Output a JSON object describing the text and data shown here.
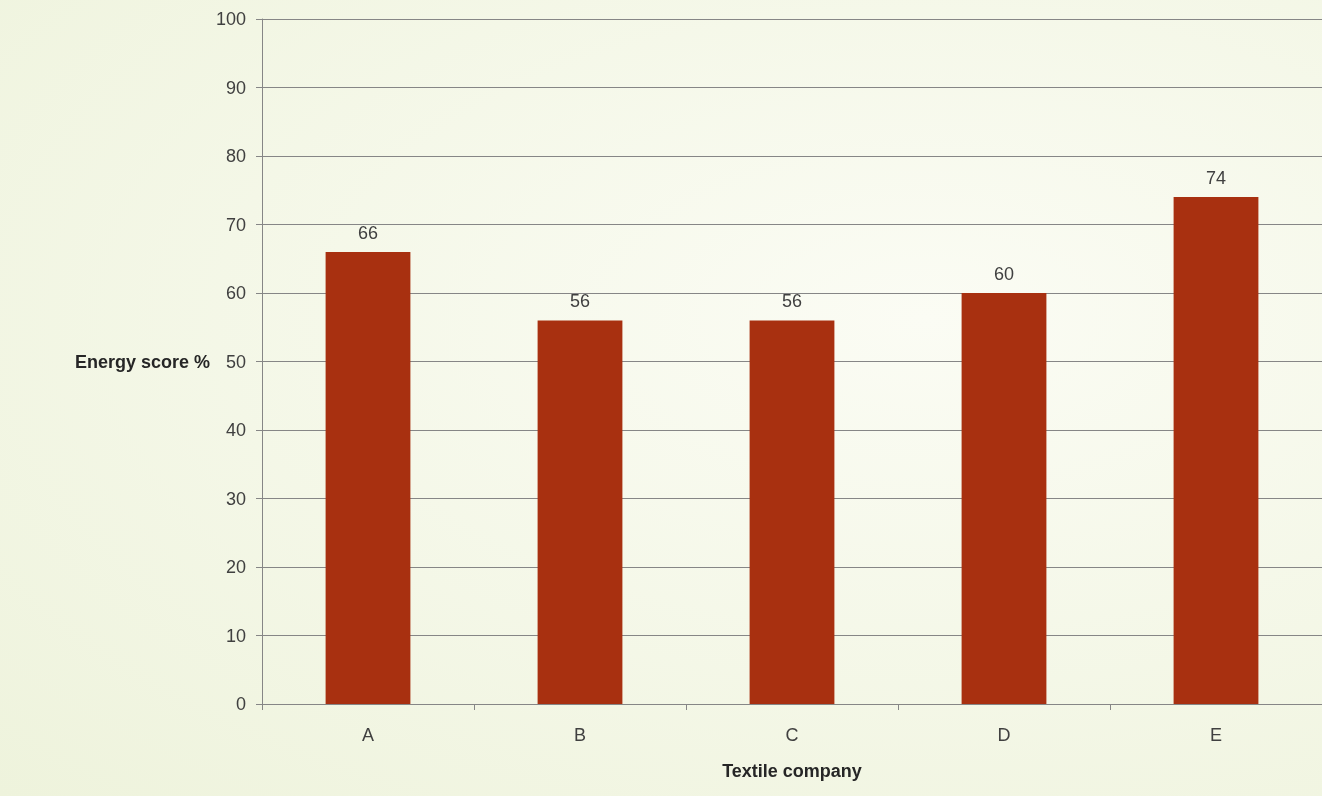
{
  "chart_data": {
    "type": "bar",
    "xlabel": "Textile company",
    "ylabel": "Energy score %",
    "categories": [
      "A",
      "B",
      "C",
      "D",
      "E"
    ],
    "values": [
      66,
      56,
      56,
      60,
      74
    ],
    "color": "#a83010",
    "ylim": [
      0,
      100
    ],
    "yticks": [
      0,
      10,
      20,
      30,
      40,
      50,
      60,
      70,
      80,
      90,
      100
    ],
    "grid": "y",
    "data_labels": true
  }
}
